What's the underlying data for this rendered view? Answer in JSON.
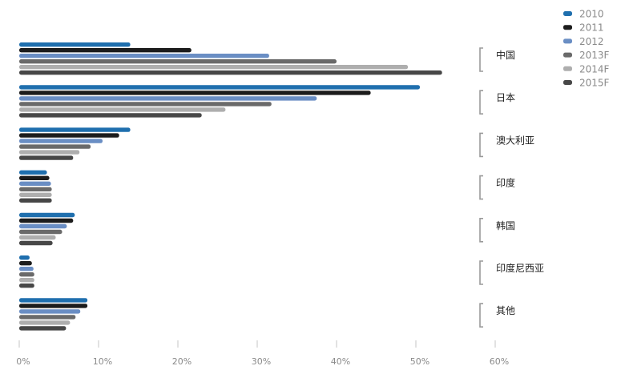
{
  "chart_data": {
    "type": "bar",
    "orientation": "horizontal",
    "categories": [
      "中国",
      "日本",
      "澳大利亚",
      "印度",
      "韩国",
      "印度尼西亚",
      "其他"
    ],
    "series": [
      {
        "name": "2010",
        "color": "#1f6fae",
        "values": [
          14,
          50.5,
          14,
          3.5,
          7,
          1.3,
          8.6
        ]
      },
      {
        "name": "2011",
        "color": "#1c1c1c",
        "values": [
          21.7,
          44.3,
          12.6,
          3.8,
          6.8,
          1.6,
          8.6
        ]
      },
      {
        "name": "2012",
        "color": "#6a8ec4",
        "values": [
          31.5,
          37.5,
          10.5,
          4,
          6,
          1.8,
          7.7
        ]
      },
      {
        "name": "2013F",
        "color": "#6a6a6a",
        "values": [
          40,
          31.8,
          9,
          4.1,
          5.4,
          1.9,
          7.1
        ]
      },
      {
        "name": "2014F",
        "color": "#aeaeae",
        "values": [
          49,
          26,
          7.6,
          4.1,
          4.6,
          1.9,
          6.4
        ]
      },
      {
        "name": "2015F",
        "color": "#474747",
        "values": [
          53.3,
          23,
          6.8,
          4.1,
          4.2,
          1.9,
          5.9
        ]
      }
    ],
    "xlim": [
      0,
      60
    ],
    "x_tick_labels": [
      "0%",
      "10%",
      "20%",
      "30%",
      "40%",
      "50%",
      "60%"
    ],
    "legend_position": "top-right",
    "grid": false
  }
}
